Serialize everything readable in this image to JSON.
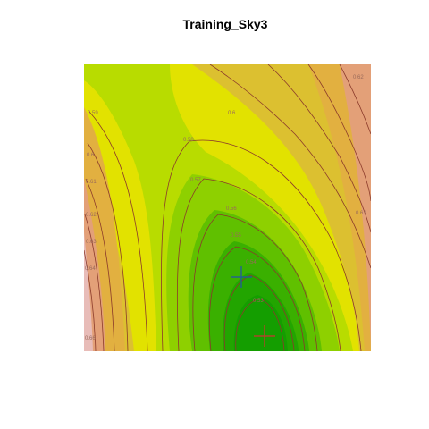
{
  "chart_data": {
    "type": "contour",
    "title": "Training_Sky3",
    "xlabel": "",
    "ylabel": "",
    "contour_labels": [
      {
        "text": "0.59",
        "value": 0.59
      },
      {
        "text": "0.6",
        "value": 0.6
      },
      {
        "text": "0.58",
        "value": 0.58
      },
      {
        "text": "0.62",
        "value": 0.62
      },
      {
        "text": "0.57",
        "value": 0.57
      },
      {
        "text": "0.56",
        "value": 0.56
      },
      {
        "text": "0.55",
        "value": 0.55
      },
      {
        "text": "0.54",
        "value": 0.54
      },
      {
        "text": "0.53",
        "value": 0.53
      },
      {
        "text": "0.61",
        "value": 0.61
      },
      {
        "text": "0.6",
        "value": 0.6
      },
      {
        "text": "0.61",
        "value": 0.61
      },
      {
        "text": "0.62",
        "value": 0.62
      },
      {
        "text": "0.63",
        "value": 0.63
      },
      {
        "text": "0.64",
        "value": 0.64
      },
      {
        "text": "0.66",
        "value": 0.66
      }
    ],
    "markers": [
      {
        "name": "blue-cross",
        "color": "#2255aa"
      },
      {
        "name": "red-cross",
        "color": "#cc3333"
      }
    ],
    "colors": {
      "low": "#149e00",
      "mid_green": "#8ed000",
      "yellow": "#e2e200",
      "orange": "#e2b040",
      "peach": "#e3a078",
      "pink": "#e8bcb8",
      "contour_line": "#8b3a2a"
    }
  }
}
